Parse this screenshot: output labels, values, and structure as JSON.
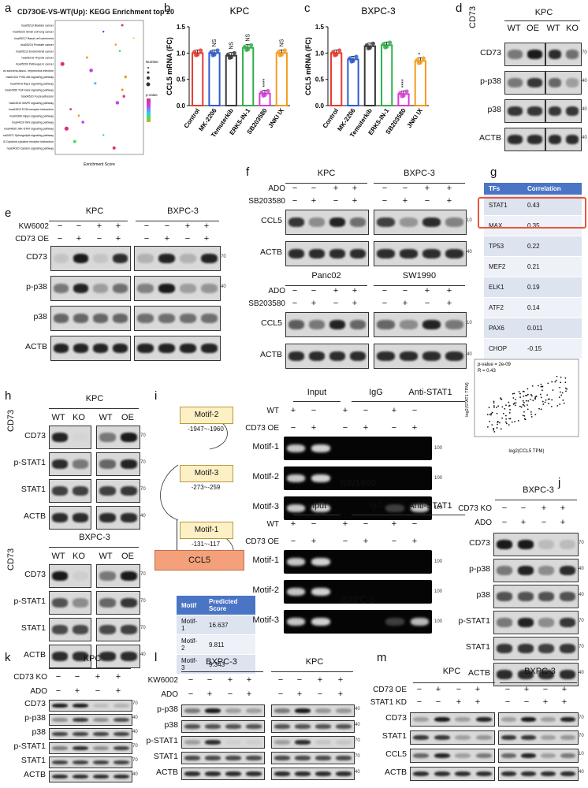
{
  "panels": {
    "a": {
      "label": "a",
      "title": "CD73OE-VS-WT(Up): KEGG Enrichment top 20",
      "xlabel": "Enrichment Score",
      "legend_number_title": "Number",
      "legend_pvalue_title": "p-value",
      "terms": [
        "hsa05219 Bladder cancer",
        "hsa05222 Small cell lung cancer",
        "hsa05217 Basal cell carcinoma",
        "hsa05215 Prostate cancer",
        "hsa05213 Endometrial cancer",
        "hsa05216 Thyroid cancer",
        "hsa05200 Pathways in cancer",
        "hsa05167 Kaposi sarcoma-assoc. herpesvirus infection",
        "hsa04151 PI3K-Akt signaling pathway",
        "hsa04015 Rap1 signaling pathway",
        "hsa04350 TGF-beta signaling pathway",
        "hsa04510 Focal adhesion",
        "hsa04010 MAPK signaling pathway",
        "hsa04512 ECM-receptor interaction",
        "hsa04390 Hippo signaling pathway",
        "hsa04310 Wnt signaling pathway",
        "hsa04630 JAK-STAT signaling pathway",
        "hsa04071 Sphingolipid signaling pathway",
        "hsa04060 Cytokine-cytokine receptor interaction",
        "hsa04020 Calcium signaling pathway"
      ]
    },
    "b": {
      "label": "b",
      "title": "KPC",
      "ylabel": "CCL5 mRNA (FC)"
    },
    "c": {
      "label": "c",
      "title": "BXPC-3",
      "ylabel": "CCL5 mRNA (FC)"
    },
    "d": {
      "label": "d",
      "title": "KPC",
      "side_label": "CD73",
      "lanes": [
        "WT",
        "OE",
        "WT",
        "KO"
      ],
      "rows": [
        "CD73",
        "p-p38",
        "p38",
        "ACTB"
      ],
      "mw": [
        "70",
        "40",
        "40",
        "40"
      ]
    },
    "e": {
      "label": "e",
      "title_left": "KPC",
      "title_right": "BXPC-3",
      "cond": [
        "KW6002",
        "CD73 OE"
      ],
      "rows": [
        "CD73",
        "p-p38",
        "p38",
        "ACTB"
      ],
      "mw": [
        "70",
        "40",
        "",
        ""
      ]
    },
    "f": {
      "label": "f",
      "top_left": "KPC",
      "top_right": "BXPC-3",
      "bot_left": "Panc02",
      "bot_right": "SW1990",
      "cond": [
        "ADO",
        "SB203580"
      ],
      "rows": [
        "CCL5",
        "ACTB"
      ],
      "mw": [
        "10",
        "40"
      ]
    },
    "g": {
      "label": "g",
      "head_tf": "TFs",
      "head_corr": "Correlation",
      "rows": [
        {
          "tf": "STAT1",
          "corr": "0.43"
        },
        {
          "tf": "MAX",
          "corr": "0.35"
        },
        {
          "tf": "TP53",
          "corr": "0.22"
        },
        {
          "tf": "MEF2",
          "corr": "0.21"
        },
        {
          "tf": "ELK1",
          "corr": "0.19"
        },
        {
          "tf": "ATF2",
          "corr": "0.14"
        },
        {
          "tf": "PAX6",
          "corr": "0.011"
        },
        {
          "tf": "CHOP",
          "corr": "-0.15"
        }
      ]
    },
    "h": {
      "label": "h",
      "title1": "KPC",
      "title2": "BXPC-3",
      "side_label": "CD73",
      "lanes": [
        "WT",
        "KO",
        "WT",
        "OE"
      ],
      "rows": [
        "CD73",
        "p-STAT1",
        "STAT1",
        "ACTB"
      ],
      "mw": [
        "70",
        "70",
        "70",
        "40"
      ]
    },
    "i": {
      "label": "i",
      "motifs": [
        {
          "name": "Motif-2",
          "range": "-1947~-1960"
        },
        {
          "name": "Motif-3",
          "range": "-273~-259"
        },
        {
          "name": "Motif-1",
          "range": "-131~-117"
        }
      ],
      "gene": "CCL5",
      "score_head_motif": "Motif",
      "score_head_score": "Predicted Score",
      "scores": [
        {
          "motif": "Motif-1",
          "score": "16.637"
        },
        {
          "motif": "Motif-2",
          "score": "9.811"
        },
        {
          "motif": "Motif-3",
          "score": "9.343"
        }
      ],
      "gel_cols": [
        "Input",
        "IgG",
        "Anti-STAT1"
      ],
      "gel_conds": [
        "WT",
        "CD73 OE"
      ],
      "gel_rows": [
        "Motif-1",
        "Motif-2",
        "Motif-3"
      ],
      "gel_mw": "100",
      "gel1_title": "SW1990",
      "gel2_title": "BXPC-3",
      "scatter_stats_p": "p-value = 2e-09",
      "scatter_stats_r": "R = 0.43",
      "scatter_xlabel": "log2(CCL5 TPM)",
      "scatter_ylabel": "log2(STAT1 TPM)"
    },
    "j": {
      "label": "j",
      "title": "BXPC-3",
      "cond": [
        "CD73 KO",
        "ADO"
      ],
      "rows": [
        "CD73",
        "p-p38",
        "p38",
        "p-STAT1",
        "STAT1",
        "ACTB"
      ],
      "mw": [
        "70",
        "40",
        "40",
        "70",
        "70",
        "40"
      ]
    },
    "k": {
      "label": "k",
      "title": "KPC",
      "cond": [
        "CD73 KO",
        "ADO"
      ],
      "rows": [
        "CD73",
        "p-p38",
        "p38",
        "p-STAT1",
        "STAT1",
        "ACTB"
      ],
      "mw": [
        "70",
        "40",
        "40",
        "70",
        "70",
        "40"
      ]
    },
    "l": {
      "label": "l",
      "title_left": "BXPC-3",
      "title_right": "KPC",
      "cond": [
        "KW6002",
        "ADO"
      ],
      "rows": [
        "p-p38",
        "p38",
        "p-STAT1",
        "STAT1",
        "ACTB"
      ],
      "mw": [
        "40",
        "40",
        "70",
        "70",
        "40"
      ]
    },
    "m": {
      "label": "m",
      "title_left": "KPC",
      "title_right": "BXPC-3",
      "cond": [
        "CD73 OE",
        "STAT1 KD"
      ],
      "rows": [
        "CD73",
        "STAT1",
        "CCL5",
        "ACTB"
      ],
      "mw": [
        "70",
        "70",
        "10",
        "40"
      ]
    }
  },
  "chart_data": [
    {
      "type": "bar",
      "title": "KPC",
      "ylabel": "CCL5 mRNA (FC)",
      "ylim": [
        0,
        1.5
      ],
      "yticks": [
        "0.0",
        "0.5",
        "1.0",
        "1.5"
      ],
      "categories": [
        "Control",
        "MK-2206",
        "Temuterkib",
        "ERK5-IN-1",
        "SB203580",
        "JNKI IX"
      ],
      "values": [
        1.0,
        1.0,
        0.95,
        1.1,
        0.23,
        1.0
      ],
      "sig": [
        "",
        "NS",
        "NS",
        "NS",
        "****",
        "NS"
      ],
      "colors": [
        "#e63b2e",
        "#2e5ccf",
        "#3a3a3a",
        "#2fb04a",
        "#d63fd6",
        "#f39c1e"
      ]
    },
    {
      "type": "bar",
      "title": "BXPC-3",
      "ylabel": "CCL5 mRNA (FC)",
      "ylim": [
        0,
        1.5
      ],
      "yticks": [
        "0.0",
        "0.5",
        "1.0",
        "1.5"
      ],
      "categories": [
        "Control",
        "MK-2206",
        "Temuterkib",
        "ERK5-IN-1",
        "SB203580",
        "JNKI IX"
      ],
      "values": [
        1.0,
        0.88,
        1.13,
        1.15,
        0.22,
        0.85
      ],
      "sig": [
        "",
        "",
        "",
        "",
        "****",
        "*"
      ],
      "colors": [
        "#e63b2e",
        "#2e5ccf",
        "#3a3a3a",
        "#2fb04a",
        "#d63fd6",
        "#f39c1e"
      ]
    },
    {
      "type": "scatter",
      "title": "",
      "xlabel": "log2(CCL5 TPM)",
      "ylabel": "log2(STAT1 TPM)",
      "xlim": [
        1,
        7
      ],
      "ylim": [
        5,
        9
      ],
      "annotation": "p-value = 2e-09, R = 0.43"
    }
  ]
}
